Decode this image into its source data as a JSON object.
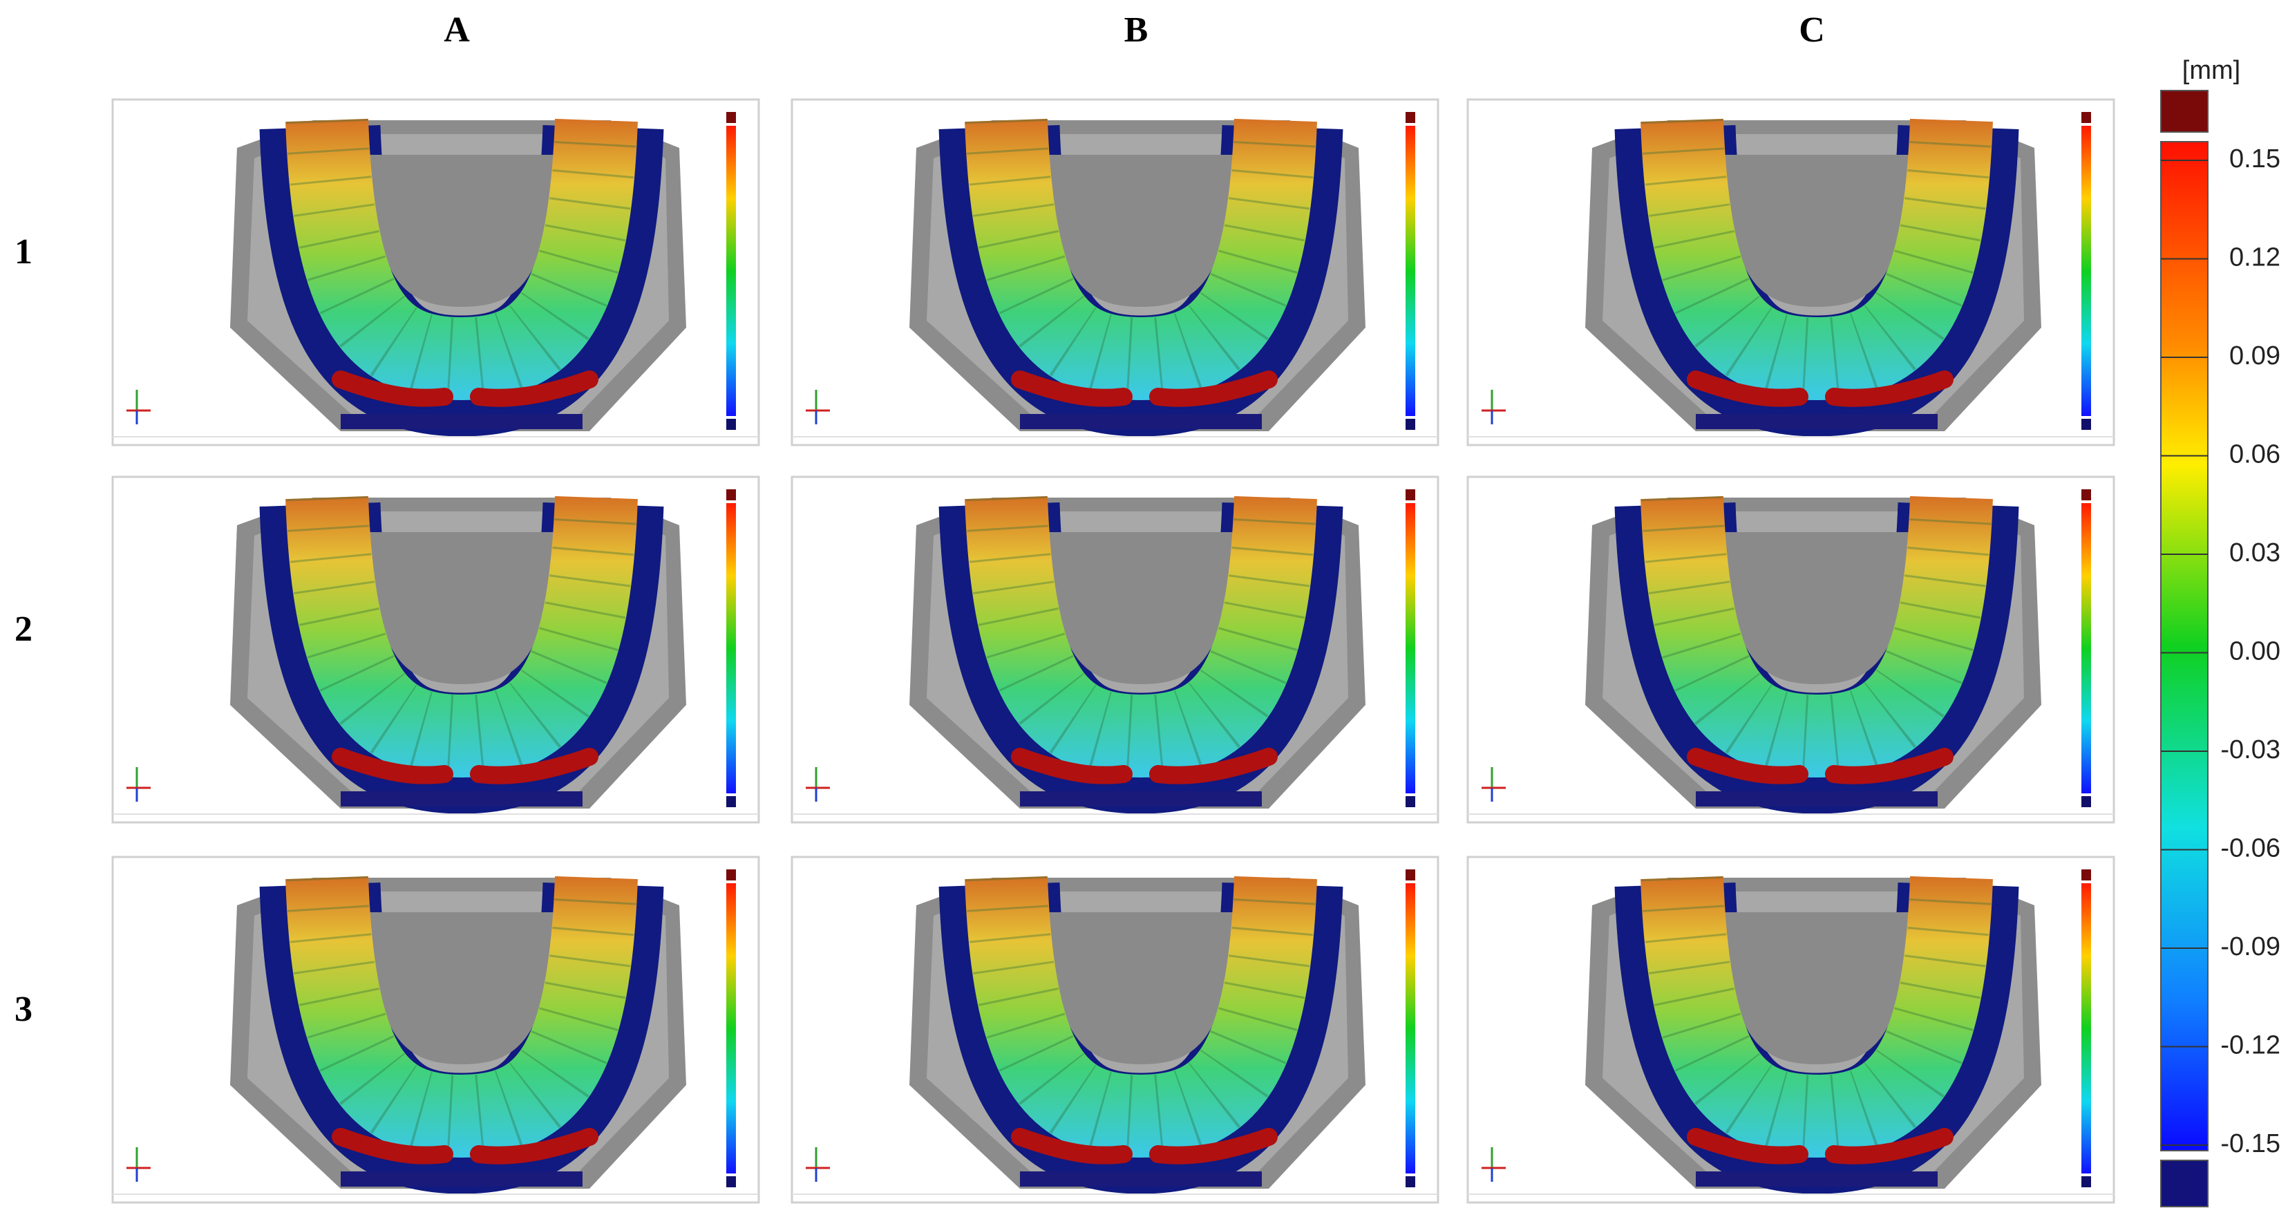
{
  "columns": [
    "A",
    "B",
    "C"
  ],
  "rows": [
    "1",
    "2",
    "3"
  ],
  "colorbar": {
    "unit": "[mm]",
    "lim": [
      -0.15,
      0.15
    ],
    "ticks": [
      0.15,
      0.12,
      0.09,
      0.06,
      0.03,
      {
        "value": 0,
        "label": "0.00"
      },
      -0.03,
      -0.06,
      -0.09,
      -0.12,
      -0.15
    ]
  }
}
